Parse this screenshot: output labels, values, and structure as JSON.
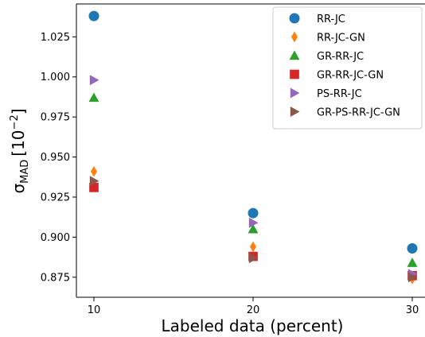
{
  "chart_data": {
    "type": "scatter",
    "title": "",
    "xlabel": "Labeled data (percent)",
    "ylabel": {
      "symbol": "σ",
      "subscript": "MAD",
      "unit": "[10",
      "exponent": "−2",
      "close": "]"
    },
    "x": [
      10,
      20,
      30
    ],
    "xlim": [
      8.9,
      31
    ],
    "ylim": [
      0.8625,
      1.0455
    ],
    "xticks": [
      "10",
      "20",
      "30"
    ],
    "yticks": [
      "0.875",
      "0.900",
      "0.925",
      "0.950",
      "0.975",
      "1.000",
      "1.025"
    ],
    "grid": false,
    "legend_position": "top-right",
    "series": [
      {
        "name": "RR-JC",
        "marker": "circle",
        "color": "#1f77b4",
        "values": [
          1.038,
          0.915,
          0.893
        ]
      },
      {
        "name": "RR-JC-GN",
        "marker": "diamond",
        "color": "#ff7f0e",
        "values": [
          0.941,
          0.894,
          0.874
        ]
      },
      {
        "name": "GR-RR-JC",
        "marker": "triangle-up",
        "color": "#2ca02c",
        "values": [
          0.987,
          0.905,
          0.884
        ]
      },
      {
        "name": "GR-RR-JC-GN",
        "marker": "square",
        "color": "#d62728",
        "values": [
          0.931,
          0.888,
          0.876
        ]
      },
      {
        "name": "PS-RR-JC",
        "marker": "triangle-right",
        "color": "#9467bd",
        "values": [
          0.998,
          0.909,
          0.877
        ]
      },
      {
        "name": "GR-PS-RR-JC-GN",
        "marker": "triangle-right",
        "color": "#8c564b",
        "values": [
          0.935,
          0.887,
          0.875
        ]
      }
    ]
  }
}
